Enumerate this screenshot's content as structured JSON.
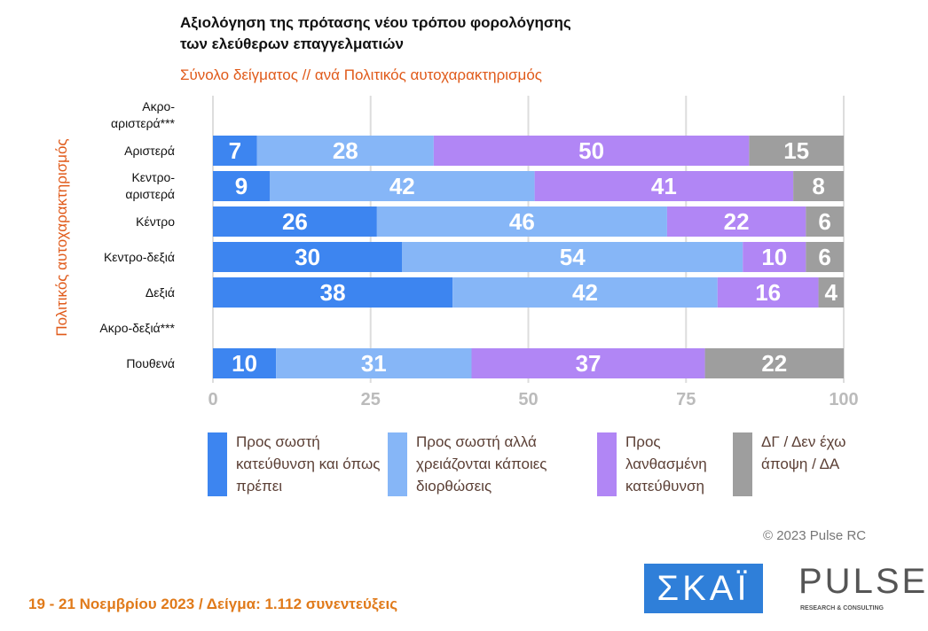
{
  "chart_data": {
    "type": "stacked-bar-horizontal",
    "title": "Αξιολόγηση της πρότασης νέου τρόπου φορολόγησης των ελεύθερων επαγγελματιών",
    "subtitle": "Σύνολο δείγματος // ανά Πολιτικός αυτοχαρακτηρισμός",
    "y_label": "Πολιτικός αυτοχαρακτηρισμός",
    "categories": [
      "Ακρο-αριστερά***",
      "Αριστερά",
      "Κεντρο-αριστερά",
      "Κέντρο",
      "Κεντρο-δεξιά",
      "Δεξιά",
      "Ακρο-δεξιά***",
      "Πουθενά"
    ],
    "series": [
      {
        "name": "Προς σωστή κατεύθυνση και όπως πρέπει",
        "color": "#3d85f0",
        "values": [
          null,
          7,
          9,
          26,
          30,
          38,
          null,
          10
        ]
      },
      {
        "name": "Προς σωστή αλλά χρειάζονται κάποιες διορθώσεις",
        "color": "#86b6f7",
        "values": [
          null,
          28,
          42,
          46,
          54,
          42,
          null,
          31
        ]
      },
      {
        "name": "Προς λανθασμένη κατεύθυνση",
        "color": "#b186f5",
        "values": [
          null,
          50,
          41,
          22,
          10,
          16,
          null,
          37
        ]
      },
      {
        "name": "ΔΓ / Δεν έχω άποψη / ΔΑ",
        "color": "#9e9e9e",
        "values": [
          null,
          15,
          8,
          6,
          6,
          4,
          null,
          22
        ]
      }
    ],
    "xlim": [
      0,
      100
    ],
    "xticks": [
      0,
      25,
      50,
      75,
      100
    ],
    "grid": true,
    "copyright": "© 2023 Pulse RC",
    "footer": "19 - 21 Νοεμβρίου 2023 / Δείγμα: 1.112 συνεντεύξεις",
    "logos": [
      "ΣΚΑΪ",
      "PULSE",
      "RESEARCH & CONSULTING"
    ]
  }
}
